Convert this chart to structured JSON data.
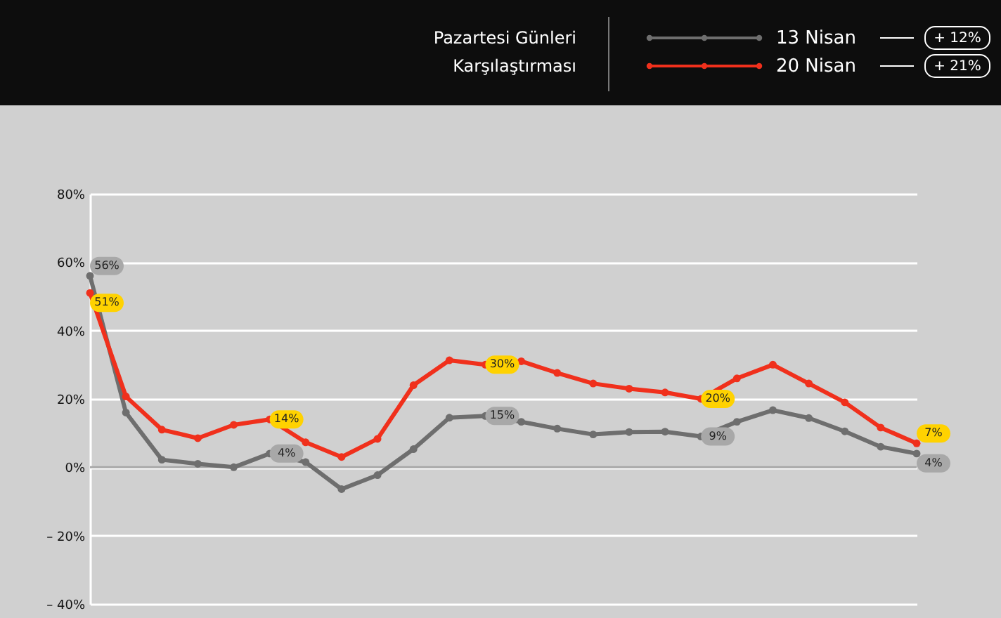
{
  "chart_data": {
    "type": "line",
    "title": "Pazartesi Günleri Karşılaştırması",
    "categories": [
      null,
      null,
      null,
      null,
      null,
      null,
      null,
      null,
      null,
      null,
      null,
      null,
      null,
      null,
      null,
      null,
      null,
      null,
      null,
      null,
      null,
      null,
      null,
      null
    ],
    "series": [
      {
        "name": "13 Nisan",
        "color": "#6e6e6e",
        "values": [
          56,
          16,
          2.2,
          1,
          0,
          4,
          1.5,
          -6.4,
          -2.3,
          5.3,
          14.5,
          15,
          13.3,
          11.3,
          9.6,
          10.3,
          10.4,
          9,
          13.3,
          16.7,
          14.4,
          10.5,
          6,
          4
        ],
        "value_labels": [
          "56%",
          null,
          null,
          null,
          null,
          "4%",
          null,
          null,
          null,
          null,
          null,
          "15%",
          null,
          null,
          null,
          null,
          null,
          "9%",
          null,
          null,
          null,
          null,
          null,
          "4%"
        ]
      },
      {
        "name": "20 Nisan",
        "color": "#f0301c",
        "values": [
          51,
          20.7,
          11,
          8.5,
          12.4,
          14,
          7.3,
          3,
          8.3,
          24,
          31.3,
          30,
          31,
          27.6,
          24.5,
          23,
          21.9,
          20,
          26,
          30,
          24.5,
          19,
          11.6,
          7
        ],
        "value_labels": [
          "51%",
          null,
          null,
          null,
          null,
          "14%",
          null,
          null,
          null,
          null,
          null,
          "30%",
          null,
          null,
          null,
          null,
          null,
          "20%",
          null,
          null,
          null,
          null,
          null,
          "7%"
        ]
      }
    ],
    "ylim": [
      -40,
      80
    ],
    "yticks": [
      {
        "value": -40,
        "label": "– 40%"
      },
      {
        "value": -20,
        "label": "– 20%"
      },
      {
        "value": 0,
        "label": "0%"
      },
      {
        "value": 20,
        "label": "20%"
      },
      {
        "value": 40,
        "label": "40%"
      },
      {
        "value": 60,
        "label": "60%"
      },
      {
        "value": 80,
        "label": "80%"
      }
    ],
    "ref_lines": [
      {
        "axis": "y",
        "value": 0,
        "color": "#a8a8a8"
      }
    ],
    "annotations": [
      "+ 12%",
      "+ 21%"
    ],
    "grid": "y",
    "legend": "top right",
    "marker": "circle",
    "line_style": "solid",
    "tick_labels": "y"
  }
}
